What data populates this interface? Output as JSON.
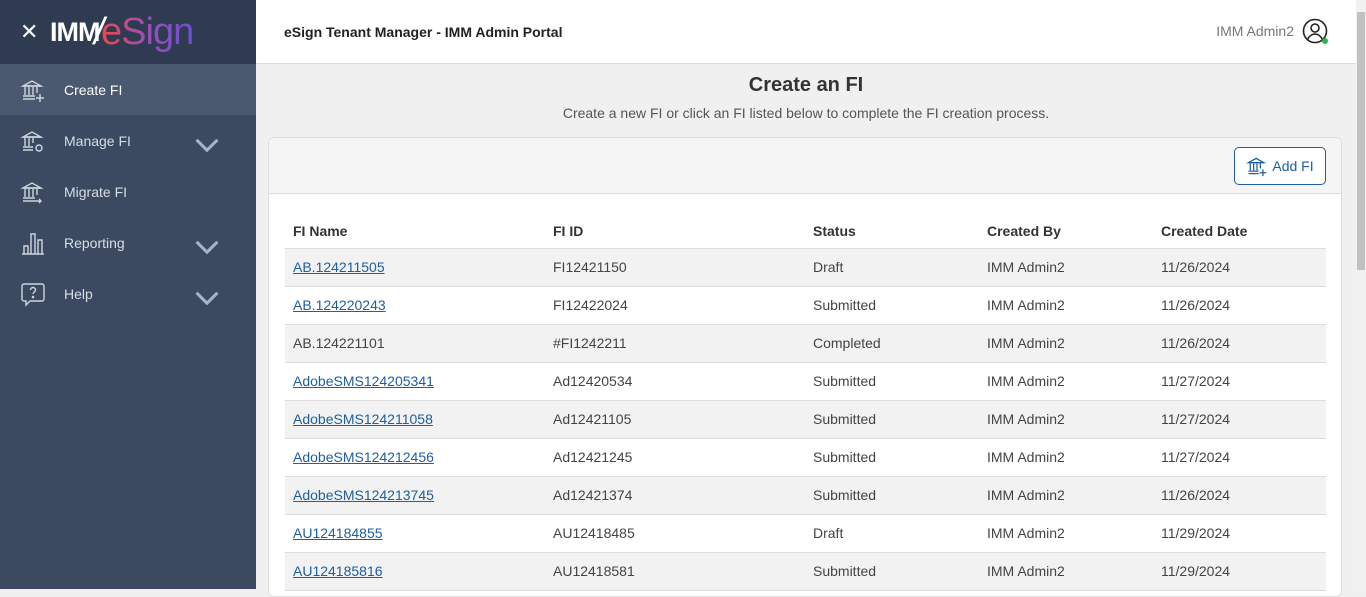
{
  "logo": {
    "brand": "IMM",
    "product": "eSign"
  },
  "sidebar": {
    "items": [
      {
        "label": "Create FI",
        "icon": "bank-plus-icon",
        "active": true,
        "expandable": false
      },
      {
        "label": "Manage FI",
        "icon": "bank-gear-icon",
        "active": false,
        "expandable": true
      },
      {
        "label": "Migrate FI",
        "icon": "bank-arrow-icon",
        "active": false,
        "expandable": false
      },
      {
        "label": "Reporting",
        "icon": "bar-chart-icon",
        "active": false,
        "expandable": true
      },
      {
        "label": "Help",
        "icon": "help-bubble-icon",
        "active": false,
        "expandable": true
      }
    ]
  },
  "header": {
    "title": "eSign Tenant Manager - IMM Admin Portal",
    "user": "IMM Admin2",
    "status_color": "#2fb44f"
  },
  "page": {
    "title": "Create an FI",
    "subtitle": "Create a new FI or click an FI listed below to complete the FI creation process.",
    "add_button": "Add FI"
  },
  "table": {
    "columns": [
      "FI Name",
      "FI ID",
      "Status",
      "Created By",
      "Created Date"
    ],
    "rows": [
      {
        "name": "AB.124211505",
        "link": true,
        "id": "FI12421150",
        "status": "Draft",
        "by": "IMM Admin2",
        "date": "11/26/2024"
      },
      {
        "name": "AB.124220243",
        "link": true,
        "id": "FI12422024",
        "status": "Submitted",
        "by": "IMM Admin2",
        "date": "11/26/2024"
      },
      {
        "name": "AB.124221101",
        "link": false,
        "id": "#FI1242211",
        "status": "Completed",
        "by": "IMM Admin2",
        "date": "11/26/2024"
      },
      {
        "name": "AdobeSMS124205341",
        "link": true,
        "id": "Ad12420534",
        "status": "Submitted",
        "by": "IMM Admin2",
        "date": "11/27/2024"
      },
      {
        "name": "AdobeSMS124211058",
        "link": true,
        "id": "Ad12421105",
        "status": "Submitted",
        "by": "IMM Admin2",
        "date": "11/27/2024"
      },
      {
        "name": "AdobeSMS124212456",
        "link": true,
        "id": "Ad12421245",
        "status": "Submitted",
        "by": "IMM Admin2",
        "date": "11/27/2024"
      },
      {
        "name": "AdobeSMS124213745",
        "link": true,
        "id": "Ad12421374",
        "status": "Submitted",
        "by": "IMM Admin2",
        "date": "11/26/2024"
      },
      {
        "name": "AU124184855",
        "link": true,
        "id": "AU12418485",
        "status": "Draft",
        "by": "IMM Admin2",
        "date": "11/29/2024"
      },
      {
        "name": "AU124185816",
        "link": true,
        "id": "AU12418581",
        "status": "Submitted",
        "by": "IMM Admin2",
        "date": "11/29/2024"
      }
    ]
  },
  "colors": {
    "sidebar": "#3b4a61",
    "accent": "#1d5fa0"
  }
}
